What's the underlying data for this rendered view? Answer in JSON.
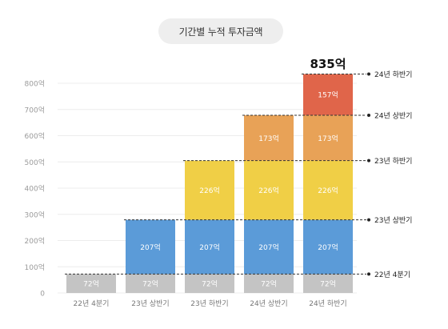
{
  "chart_data": {
    "type": "bar",
    "stacked": true,
    "title": "기간별 누적 투자금액",
    "categories": [
      "22년 4분기",
      "23년 상반기",
      "23년 하반기",
      "24년 상반기",
      "24년 하반기"
    ],
    "series": [
      {
        "name": "22년 4분기",
        "color": "#c4c4c4",
        "values": [
          72,
          72,
          72,
          72,
          72
        ],
        "labels": [
          "72억",
          "72억",
          "72억",
          "72억",
          "72억"
        ]
      },
      {
        "name": "23년 상반기",
        "color": "#5b9bd8",
        "values": [
          0,
          207,
          207,
          207,
          207
        ],
        "labels": [
          "",
          "207억",
          "207억",
          "207억",
          "207억"
        ]
      },
      {
        "name": "23년 하반기",
        "color": "#f0cf46",
        "values": [
          0,
          0,
          226,
          226,
          226
        ],
        "labels": [
          "",
          "",
          "226억",
          "226억",
          "226억"
        ]
      },
      {
        "name": "24년 상반기",
        "color": "#e8a257",
        "values": [
          0,
          0,
          0,
          173,
          173
        ],
        "labels": [
          "",
          "",
          "",
          "173억",
          "173억"
        ]
      },
      {
        "name": "24년 하반기",
        "color": "#e0654a",
        "values": [
          0,
          0,
          0,
          0,
          157
        ],
        "labels": [
          "",
          "",
          "",
          "",
          "157억"
        ]
      }
    ],
    "total_label": "835억",
    "y_ticks": [
      "0",
      "100억",
      "200억",
      "300억",
      "400억",
      "500억",
      "600억",
      "700억",
      "800억"
    ],
    "y_tick_values": [
      0,
      100,
      200,
      300,
      400,
      500,
      600,
      700,
      800
    ],
    "ylim": [
      0,
      835
    ],
    "reference_lines": [
      {
        "label": "22년 4분기",
        "value": 72
      },
      {
        "label": "23년 상반기",
        "value": 279
      },
      {
        "label": "23년 하반기",
        "value": 505
      },
      {
        "label": "24년 상반기",
        "value": 678
      },
      {
        "label": "24년 하반기",
        "value": 835
      }
    ],
    "grid": true,
    "legend": "none"
  }
}
